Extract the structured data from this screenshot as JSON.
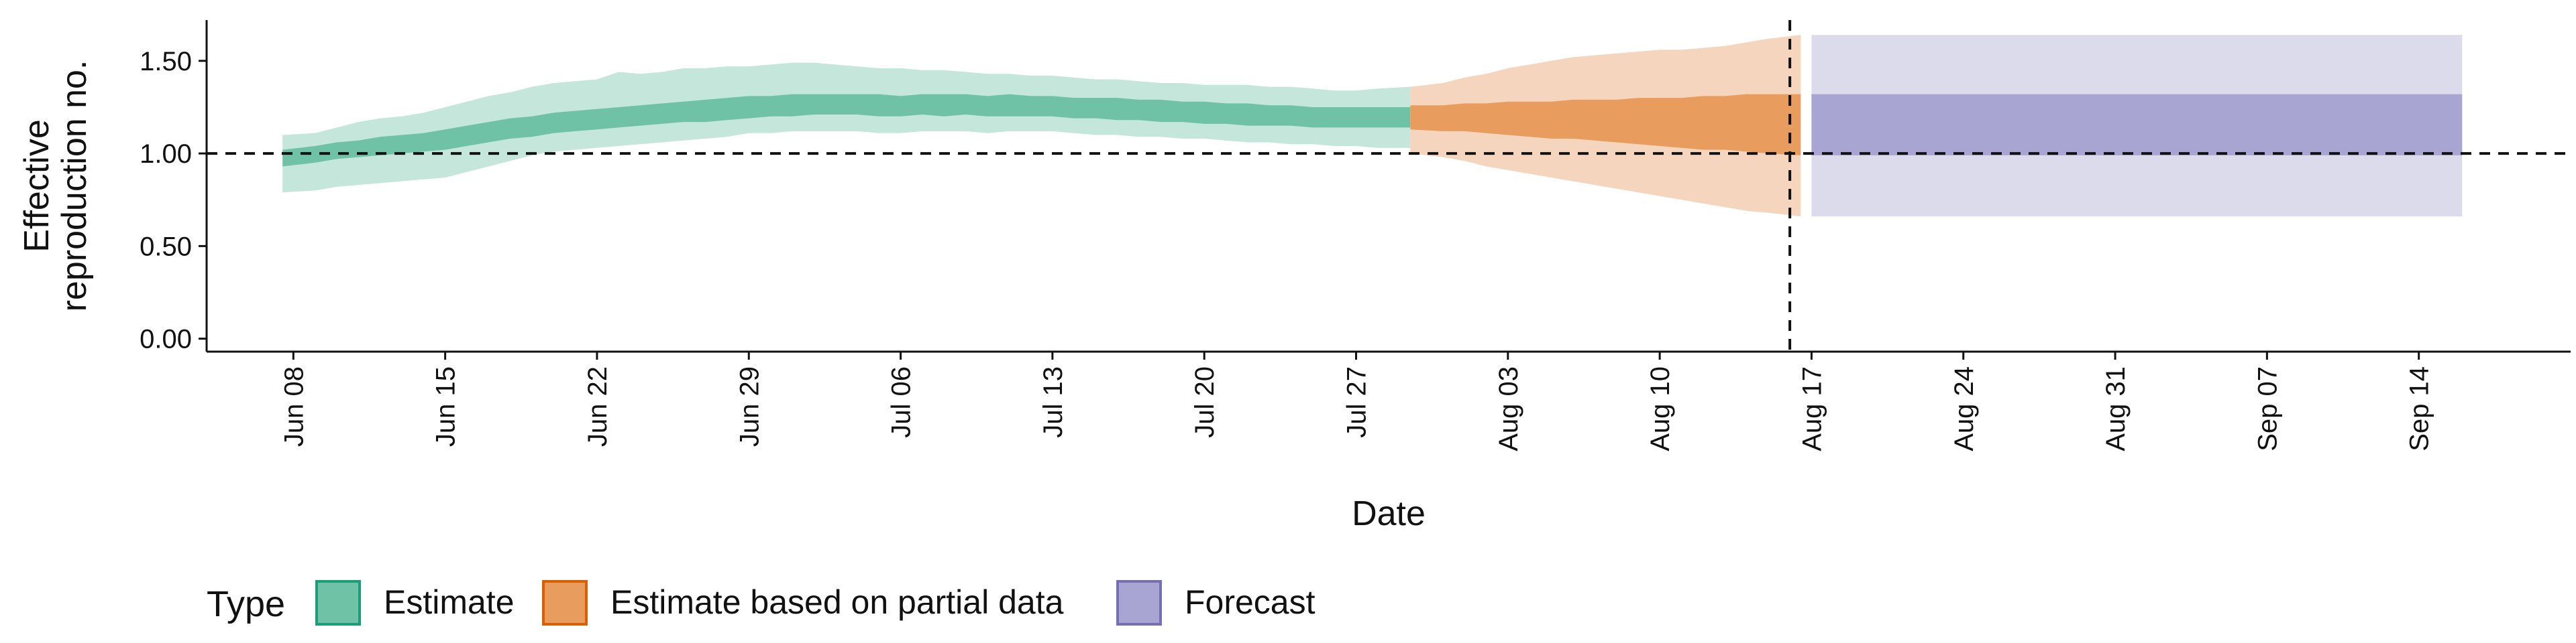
{
  "chart_data": {
    "type": "area",
    "title": "",
    "xlabel": "Date",
    "ylabel": [
      "Effective",
      "reproduction no."
    ],
    "x_axis_type": "date",
    "xlim": [
      "2021-06-04",
      "2021-09-21"
    ],
    "ylim": [
      -0.07,
      1.72
    ],
    "xticks": [
      {
        "date": "2021-06-08",
        "label": "Jun 08"
      },
      {
        "date": "2021-06-15",
        "label": "Jun 15"
      },
      {
        "date": "2021-06-22",
        "label": "Jun 22"
      },
      {
        "date": "2021-06-29",
        "label": "Jun 29"
      },
      {
        "date": "2021-07-06",
        "label": "Jul 06"
      },
      {
        "date": "2021-07-13",
        "label": "Jul 13"
      },
      {
        "date": "2021-07-20",
        "label": "Jul 20"
      },
      {
        "date": "2021-07-27",
        "label": "Jul 27"
      },
      {
        "date": "2021-08-03",
        "label": "Aug 03"
      },
      {
        "date": "2021-08-10",
        "label": "Aug 10"
      },
      {
        "date": "2021-08-17",
        "label": "Aug 17"
      },
      {
        "date": "2021-08-24",
        "label": "Aug 24"
      },
      {
        "date": "2021-08-31",
        "label": "Aug 31"
      },
      {
        "date": "2021-09-07",
        "label": "Sep 07"
      },
      {
        "date": "2021-09-14",
        "label": "Sep 14"
      }
    ],
    "yticks": [
      {
        "value": 0.0,
        "label": "0.00"
      },
      {
        "value": 0.5,
        "label": "0.50"
      },
      {
        "value": 1.0,
        "label": "1.00"
      },
      {
        "value": 1.5,
        "label": "1.50"
      }
    ],
    "reference_lines": {
      "horizontal_y": 1.0,
      "vertical_date": "2021-08-16",
      "style": "dashed"
    },
    "grid": false,
    "legend": {
      "title": "Type",
      "position": "bottom-left",
      "items": [
        "Estimate",
        "Estimate based on partial data",
        "Forecast"
      ]
    },
    "colors": {
      "Estimate": {
        "inner": "#70C2A6",
        "outer": "#C5E6DB",
        "border": "#1B9E77"
      },
      "Estimate based on partial data": {
        "inner": "#E89C5E",
        "outer": "#F6D5BE",
        "border": "#D95F02"
      },
      "Forecast": {
        "inner": "#A9A5D3",
        "outer": "#DCDBEC",
        "border": "#7570B3"
      },
      "reference_line": "#111111"
    },
    "series": [
      {
        "name": "Estimate",
        "dates": [
          "2021-06-08",
          "2021-06-09",
          "2021-06-10",
          "2021-06-11",
          "2021-06-12",
          "2021-06-13",
          "2021-06-14",
          "2021-06-15",
          "2021-06-16",
          "2021-06-17",
          "2021-06-18",
          "2021-06-19",
          "2021-06-20",
          "2021-06-21",
          "2021-06-22",
          "2021-06-23",
          "2021-06-24",
          "2021-06-25",
          "2021-06-26",
          "2021-06-27",
          "2021-06-28",
          "2021-06-29",
          "2021-06-30",
          "2021-07-01",
          "2021-07-02",
          "2021-07-03",
          "2021-07-04",
          "2021-07-05",
          "2021-07-06",
          "2021-07-07",
          "2021-07-08",
          "2021-07-09",
          "2021-07-10",
          "2021-07-11",
          "2021-07-12",
          "2021-07-13",
          "2021-07-14",
          "2021-07-15",
          "2021-07-16",
          "2021-07-17",
          "2021-07-18",
          "2021-07-19",
          "2021-07-20",
          "2021-07-21",
          "2021-07-22",
          "2021-07-23",
          "2021-07-24",
          "2021-07-25",
          "2021-07-26",
          "2021-07-27",
          "2021-07-28",
          "2021-07-29"
        ],
        "lower_90": [
          0.79,
          0.8,
          0.82,
          0.83,
          0.84,
          0.85,
          0.86,
          0.87,
          0.9,
          0.93,
          0.96,
          0.99,
          1.01,
          1.02,
          1.03,
          1.04,
          1.05,
          1.06,
          1.07,
          1.08,
          1.09,
          1.11,
          1.11,
          1.12,
          1.12,
          1.12,
          1.12,
          1.11,
          1.11,
          1.12,
          1.12,
          1.12,
          1.11,
          1.12,
          1.12,
          1.12,
          1.11,
          1.1,
          1.1,
          1.09,
          1.09,
          1.08,
          1.08,
          1.07,
          1.06,
          1.06,
          1.05,
          1.05,
          1.04,
          1.04,
          1.03,
          1.03
        ],
        "upper_90": [
          1.1,
          1.11,
          1.14,
          1.17,
          1.19,
          1.2,
          1.22,
          1.25,
          1.28,
          1.31,
          1.33,
          1.36,
          1.38,
          1.39,
          1.4,
          1.44,
          1.43,
          1.44,
          1.46,
          1.46,
          1.47,
          1.47,
          1.48,
          1.49,
          1.49,
          1.48,
          1.47,
          1.46,
          1.46,
          1.45,
          1.45,
          1.44,
          1.43,
          1.43,
          1.42,
          1.42,
          1.41,
          1.4,
          1.4,
          1.39,
          1.38,
          1.38,
          1.37,
          1.37,
          1.37,
          1.36,
          1.36,
          1.35,
          1.34,
          1.34,
          1.35,
          1.36
        ],
        "lower_50": [
          0.93,
          0.95,
          0.97,
          0.98,
          0.99,
          1.0,
          1.01,
          1.02,
          1.04,
          1.06,
          1.08,
          1.09,
          1.11,
          1.12,
          1.13,
          1.14,
          1.15,
          1.16,
          1.17,
          1.17,
          1.18,
          1.19,
          1.2,
          1.2,
          1.21,
          1.21,
          1.21,
          1.2,
          1.2,
          1.21,
          1.2,
          1.21,
          1.2,
          1.2,
          1.2,
          1.2,
          1.19,
          1.19,
          1.18,
          1.18,
          1.17,
          1.17,
          1.16,
          1.16,
          1.15,
          1.15,
          1.15,
          1.14,
          1.14,
          1.14,
          1.14,
          1.14
        ],
        "upper_50": [
          1.02,
          1.04,
          1.06,
          1.07,
          1.09,
          1.1,
          1.11,
          1.13,
          1.15,
          1.17,
          1.19,
          1.2,
          1.22,
          1.23,
          1.24,
          1.25,
          1.26,
          1.27,
          1.28,
          1.29,
          1.3,
          1.31,
          1.31,
          1.32,
          1.32,
          1.32,
          1.32,
          1.32,
          1.31,
          1.32,
          1.32,
          1.32,
          1.31,
          1.32,
          1.31,
          1.31,
          1.3,
          1.3,
          1.3,
          1.29,
          1.29,
          1.28,
          1.28,
          1.27,
          1.27,
          1.26,
          1.26,
          1.25,
          1.25,
          1.25,
          1.25,
          1.25
        ]
      },
      {
        "name": "Estimate based on partial data",
        "dates": [
          "2021-07-30",
          "2021-07-31",
          "2021-08-01",
          "2021-08-02",
          "2021-08-03",
          "2021-08-04",
          "2021-08-05",
          "2021-08-06",
          "2021-08-07",
          "2021-08-08",
          "2021-08-09",
          "2021-08-10",
          "2021-08-11",
          "2021-08-12",
          "2021-08-13",
          "2021-08-14",
          "2021-08-15",
          "2021-08-16"
        ],
        "lower_90": [
          1.0,
          0.98,
          0.96,
          0.93,
          0.91,
          0.89,
          0.87,
          0.85,
          0.83,
          0.81,
          0.79,
          0.77,
          0.75,
          0.73,
          0.71,
          0.69,
          0.68,
          0.66
        ],
        "upper_90": [
          1.36,
          1.38,
          1.41,
          1.43,
          1.46,
          1.48,
          1.5,
          1.52,
          1.53,
          1.54,
          1.55,
          1.56,
          1.56,
          1.57,
          1.58,
          1.6,
          1.62,
          1.64
        ],
        "lower_50": [
          1.13,
          1.12,
          1.12,
          1.11,
          1.1,
          1.09,
          1.08,
          1.08,
          1.07,
          1.06,
          1.05,
          1.04,
          1.03,
          1.02,
          1.02,
          1.01,
          1.0,
          0.99
        ],
        "upper_50": [
          1.26,
          1.26,
          1.27,
          1.27,
          1.28,
          1.28,
          1.28,
          1.29,
          1.29,
          1.29,
          1.3,
          1.3,
          1.3,
          1.31,
          1.31,
          1.32,
          1.32,
          1.32
        ]
      },
      {
        "name": "Forecast",
        "dates": [
          "2021-08-17",
          "2021-09-16"
        ],
        "lower_90": [
          0.66,
          0.66
        ],
        "upper_90": [
          1.64,
          1.64
        ],
        "lower_50": [
          0.99,
          0.99
        ],
        "upper_50": [
          1.32,
          1.32
        ]
      }
    ]
  }
}
